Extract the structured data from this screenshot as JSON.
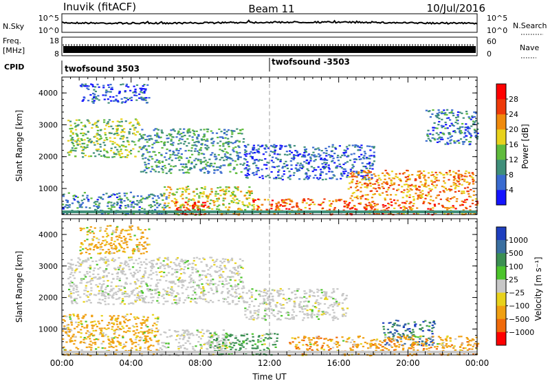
{
  "header": {
    "station": "Inuvik (fitACF)",
    "beam": "Beam 11",
    "date": "10/Jul/2016"
  },
  "noise_panel": {
    "left_label": "N.Sky",
    "left_ticks": [
      "10^5",
      "10^0"
    ],
    "right_ticks": [
      "10^5",
      "10^0"
    ],
    "right_label": "N.Search"
  },
  "freq_panel": {
    "left_label_1": "Freq.",
    "left_label_2": "[MHz]",
    "left_ticks": [
      "18",
      "8"
    ],
    "right_ticks": [
      "60",
      "0"
    ],
    "right_label": "Nave"
  },
  "cpid": {
    "label": "CPID",
    "segments": [
      "twofsound 3503",
      "twofsound -3503"
    ]
  },
  "chart_data": [
    {
      "type": "heatmap",
      "panel": "power",
      "ylabel": "Slant Range [km]",
      "xlabel": "",
      "yticks": [
        "1000",
        "2000",
        "3000",
        "4000"
      ],
      "ylim": [
        180,
        4500
      ],
      "xlim": [
        0,
        24
      ],
      "colorbar": {
        "label": "Power [dB]",
        "ticks": [
          "4",
          "8",
          "12",
          "16",
          "20",
          "24",
          "28"
        ],
        "range": [
          0,
          32
        ],
        "colors": [
          "#1414ff",
          "#3a6bd0",
          "#3f8f7a",
          "#5fbb3c",
          "#e8d21c",
          "#f08a0c",
          "#ee3a0a",
          "#ff0000"
        ]
      },
      "scatter_regions": [
        {
          "t0": 0.3,
          "t1": 4.5,
          "r0": 2000,
          "r1": 3200,
          "level": 14
        },
        {
          "t0": 4.5,
          "t1": 10.5,
          "r0": 1500,
          "r1": 2900,
          "level": 10
        },
        {
          "t0": 10.5,
          "t1": 18.0,
          "r0": 1300,
          "r1": 2400,
          "level": 6
        },
        {
          "t0": 16.5,
          "t1": 23.8,
          "r0": 700,
          "r1": 1600,
          "level": 22
        },
        {
          "t0": 5.8,
          "t1": 11.0,
          "r0": 180,
          "r1": 1100,
          "level": 18
        },
        {
          "t0": 6.5,
          "t1": 8.5,
          "r0": 200,
          "r1": 600,
          "level": 29
        },
        {
          "t0": 0.0,
          "t1": 6.0,
          "r0": 200,
          "r1": 900,
          "level": 9
        },
        {
          "t0": 11.0,
          "t1": 24.0,
          "r0": 200,
          "r1": 700,
          "level": 24
        },
        {
          "t0": 21.0,
          "t1": 24.0,
          "r0": 2400,
          "r1": 3500,
          "level": 8
        },
        {
          "t0": 1.0,
          "t1": 5.0,
          "r0": 3700,
          "r1": 4300,
          "level": 5
        }
      ]
    },
    {
      "type": "heatmap",
      "panel": "velocity",
      "ylabel": "Slant Range [km]",
      "xlabel": "Time UT",
      "yticks": [
        "1000",
        "2000",
        "3000",
        "4000"
      ],
      "xticks": [
        "00:00",
        "04:00",
        "08:00",
        "12:00",
        "16:00",
        "20:00",
        "00:00"
      ],
      "ylim": [
        180,
        4500
      ],
      "xlim": [
        0,
        24
      ],
      "colorbar": {
        "label": "Velocity [m s⁻¹]",
        "ticks": [
          "1000",
          "500",
          "100",
          "25",
          "−25",
          "−100",
          "−500",
          "−1000"
        ],
        "colors": [
          "#1e3fbf",
          "#3a6fa0",
          "#3b8f52",
          "#4cc42c",
          "#c7c7c7",
          "#e8d21c",
          "#f0a012",
          "#f06a0a",
          "#ff0000"
        ]
      },
      "scatter_regions": [
        {
          "t0": 0.3,
          "t1": 10.5,
          "r0": 1800,
          "r1": 3300,
          "velocity": 0
        },
        {
          "t0": 10.5,
          "t1": 16.5,
          "r0": 1300,
          "r1": 2300,
          "velocity": 0
        },
        {
          "t0": 5.5,
          "t1": 9.5,
          "r0": 180,
          "r1": 1000,
          "velocity": 0
        },
        {
          "t0": 18.5,
          "t1": 21.5,
          "r0": 500,
          "r1": 1300,
          "velocity": 700
        },
        {
          "t0": 13.0,
          "t1": 24.0,
          "r0": 180,
          "r1": 800,
          "velocity": -300
        },
        {
          "t0": 0.0,
          "t1": 5.5,
          "r0": 180,
          "r1": 1500,
          "velocity": -200
        },
        {
          "t0": 8.5,
          "t1": 12.5,
          "r0": 200,
          "r1": 900,
          "velocity": 150
        },
        {
          "t0": 1.0,
          "t1": 5.0,
          "r0": 3400,
          "r1": 4300,
          "velocity": -150
        }
      ]
    }
  ]
}
